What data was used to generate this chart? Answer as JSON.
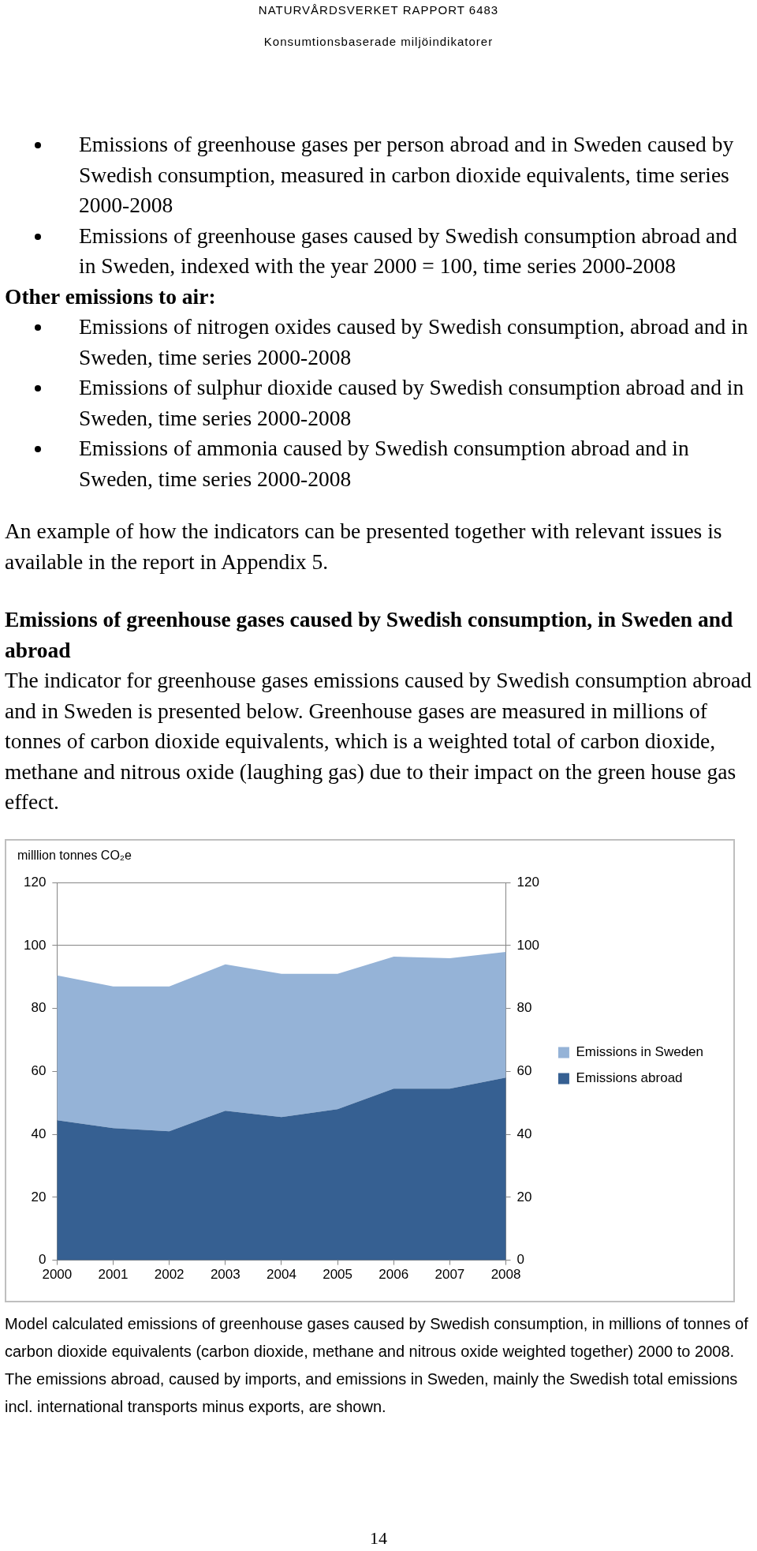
{
  "chart_data": {
    "type": "area",
    "title": "Emissions of greenhouse gases caused by Swedish consumption, in Sweden and abroad",
    "ylabel": "milllion tonnes CO₂e",
    "annotations": [
      "NATURVÅRDSVERKET RAPPORT 6483",
      "Konsumtionsbaserade miljöindikatorer",
      "Emissions of greenhouse gases per person abroad and in Sweden caused by Swedish consumption, measured in carbon dioxide equivalents, time series 2000-2008",
      "Emissions of greenhouse gases caused by Swedish consumption abroad and in Sweden, indexed with the year 2000 = 100, time series 2000-2008",
      "Other emissions to air:",
      "Emissions of nitrogen oxides caused by Swedish consumption, abroad and in Sweden, time series 2000-2008",
      "Emissions of sulphur dioxide caused by Swedish consumption abroad and in Sweden, time series 2000-2008",
      "Emissions of ammonia caused by Swedish consumption abroad and in Sweden, time series 2000-2008",
      "An example of how the indicators can be presented together with relevant issues is available in the report in Appendix 5.",
      "The indicator for greenhouse gases emissions caused by Swedish consumption abroad and in Sweden is presented below. Greenhouse gases are measured in millions of tonnes of carbon dioxide equivalents, which is a weighted total of carbon dioxide, methane and nitrous oxide (laughing gas) due to their impact on the green house gas effect.",
      "Model calculated emissions of greenhouse gases caused by Swedish consumption, in millions of tonnes of carbon dioxide equivalents (carbon dioxide, methane and nitrous oxide weighted together) 2000 to 2008. The emissions abroad, caused by imports, and emissions in Sweden, mainly the Swedish total emissions incl. international transports minus exports, are shown.",
      "14"
    ],
    "categories": [
      "2000",
      "2001",
      "2002",
      "2003",
      "2004",
      "2005",
      "2006",
      "2007",
      "2008"
    ],
    "stacked": true,
    "series": [
      {
        "name": "Emissions abroad",
        "color": "#366092",
        "values": [
          44.5,
          42,
          41,
          47.5,
          45.5,
          48,
          54.5,
          54.5,
          58
        ]
      },
      {
        "name": "Emissions in Sweden",
        "color": "#95b3d7",
        "values": [
          46,
          45,
          46,
          46.5,
          45.5,
          43,
          42,
          41.5,
          40
        ]
      }
    ],
    "ylim": [
      0,
      120
    ],
    "yticks": [
      0,
      20,
      40,
      60,
      80,
      100,
      120
    ],
    "y2lim": [
      0,
      120
    ],
    "y2ticks": [
      0,
      20,
      40,
      60,
      80,
      100,
      120
    ],
    "grid": "y",
    "legend": "right"
  }
}
